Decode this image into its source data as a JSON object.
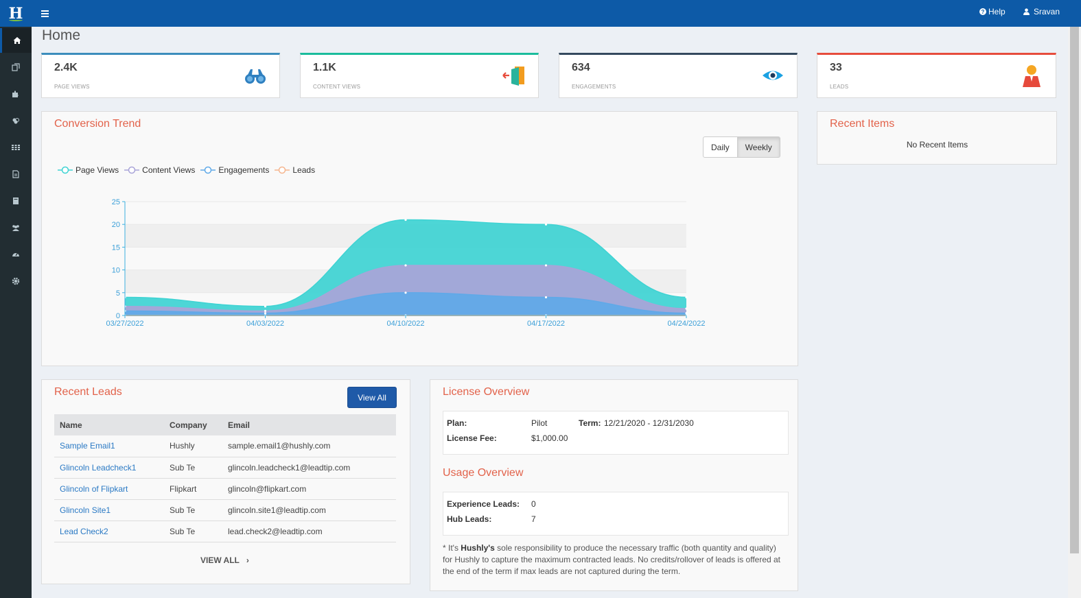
{
  "header": {
    "logo_letter": "H",
    "help_label": "Help",
    "user_name": "Sravan"
  },
  "sidebar": {
    "items": [
      {
        "icon": "home-icon",
        "active": true
      },
      {
        "icon": "content-icon"
      },
      {
        "icon": "puzzle-icon"
      },
      {
        "icon": "users-group-icon"
      },
      {
        "icon": "grid-icon"
      },
      {
        "icon": "document-icon"
      },
      {
        "icon": "book-icon"
      },
      {
        "icon": "people-icon"
      },
      {
        "icon": "dashboard-icon"
      },
      {
        "icon": "gear-icon"
      }
    ]
  },
  "page": {
    "title": "Home"
  },
  "stats": [
    {
      "value": "2.4K",
      "label": "PAGE VIEWS",
      "color": "#3c8dbc",
      "icon": "binoculars-icon"
    },
    {
      "value": "1.1K",
      "label": "CONTENT VIEWS",
      "color": "#1abc9c",
      "icon": "door-exit-icon"
    },
    {
      "value": "634",
      "label": "ENGAGEMENTS",
      "color": "#34495e",
      "icon": "eye-icon"
    },
    {
      "value": "33",
      "label": "LEADS",
      "color": "#e74c3c",
      "icon": "user-lead-icon"
    }
  ],
  "conversion": {
    "title": "Conversion Trend",
    "toggle_daily": "Daily",
    "toggle_weekly": "Weekly"
  },
  "chart_data": {
    "type": "area",
    "x": [
      "03/27/2022",
      "04/03/2022",
      "04/10/2022",
      "04/17/2022",
      "04/24/2022"
    ],
    "ylim": [
      0,
      25
    ],
    "yticks": [
      0,
      5,
      10,
      15,
      20,
      25
    ],
    "grid": true,
    "legend_position": "top-left",
    "series": [
      {
        "name": "Page Views",
        "color": "#3ed3d3",
        "values": [
          4,
          2,
          21,
          20,
          4
        ]
      },
      {
        "name": "Content Views",
        "color": "#a9a4d8",
        "values": [
          2,
          1,
          11,
          11,
          1.5
        ]
      },
      {
        "name": "Engagements",
        "color": "#5fa9e8",
        "values": [
          1,
          0.5,
          5,
          4,
          0.5
        ]
      },
      {
        "name": "Leads",
        "color": "#f5b58e",
        "values": [
          0,
          0,
          0,
          0,
          0
        ]
      }
    ]
  },
  "recent_items": {
    "title": "Recent Items",
    "empty_text": "No Recent Items"
  },
  "recent_leads": {
    "title": "Recent Leads",
    "view_all_button": "View All",
    "columns": [
      "Name",
      "Company",
      "Email"
    ],
    "rows": [
      {
        "name": "Sample Email1",
        "company": "Hushly",
        "email": "sample.email1@hushly.com"
      },
      {
        "name": "Glincoln Leadcheck1",
        "company": "Sub Te",
        "email": "glincoln.leadcheck1@leadtip.com"
      },
      {
        "name": "Glincoln of Flipkart",
        "company": "Flipkart",
        "email": "glincoln@flipkart.com"
      },
      {
        "name": "Glincoln Site1",
        "company": "Sub Te",
        "email": "glincoln.site1@leadtip.com"
      },
      {
        "name": "Lead Check2",
        "company": "Sub Te",
        "email": "lead.check2@leadtip.com"
      }
    ],
    "view_all_link": "VIEW ALL",
    "view_all_chevron": "›"
  },
  "license": {
    "title": "License Overview",
    "plan_label": "Plan:",
    "plan_value": "Pilot",
    "term_label": "Term:",
    "term_value": "12/21/2020 - 12/31/2030",
    "fee_label": "License Fee:",
    "fee_value": "$1,000.00"
  },
  "usage": {
    "title": "Usage Overview",
    "exp_label": "Experience Leads:",
    "exp_value": "0",
    "hub_label": "Hub Leads:",
    "hub_value": "7",
    "footnote_prefix": "* It's ",
    "footnote_brand": "Hushly's",
    "footnote_rest": " sole responsibility to produce the necessary traffic (both quantity and quality) for Hushly to capture the maximum contracted leads. No credits/rollover of leads is offered at the end of the term if max leads are not captured during the term."
  }
}
